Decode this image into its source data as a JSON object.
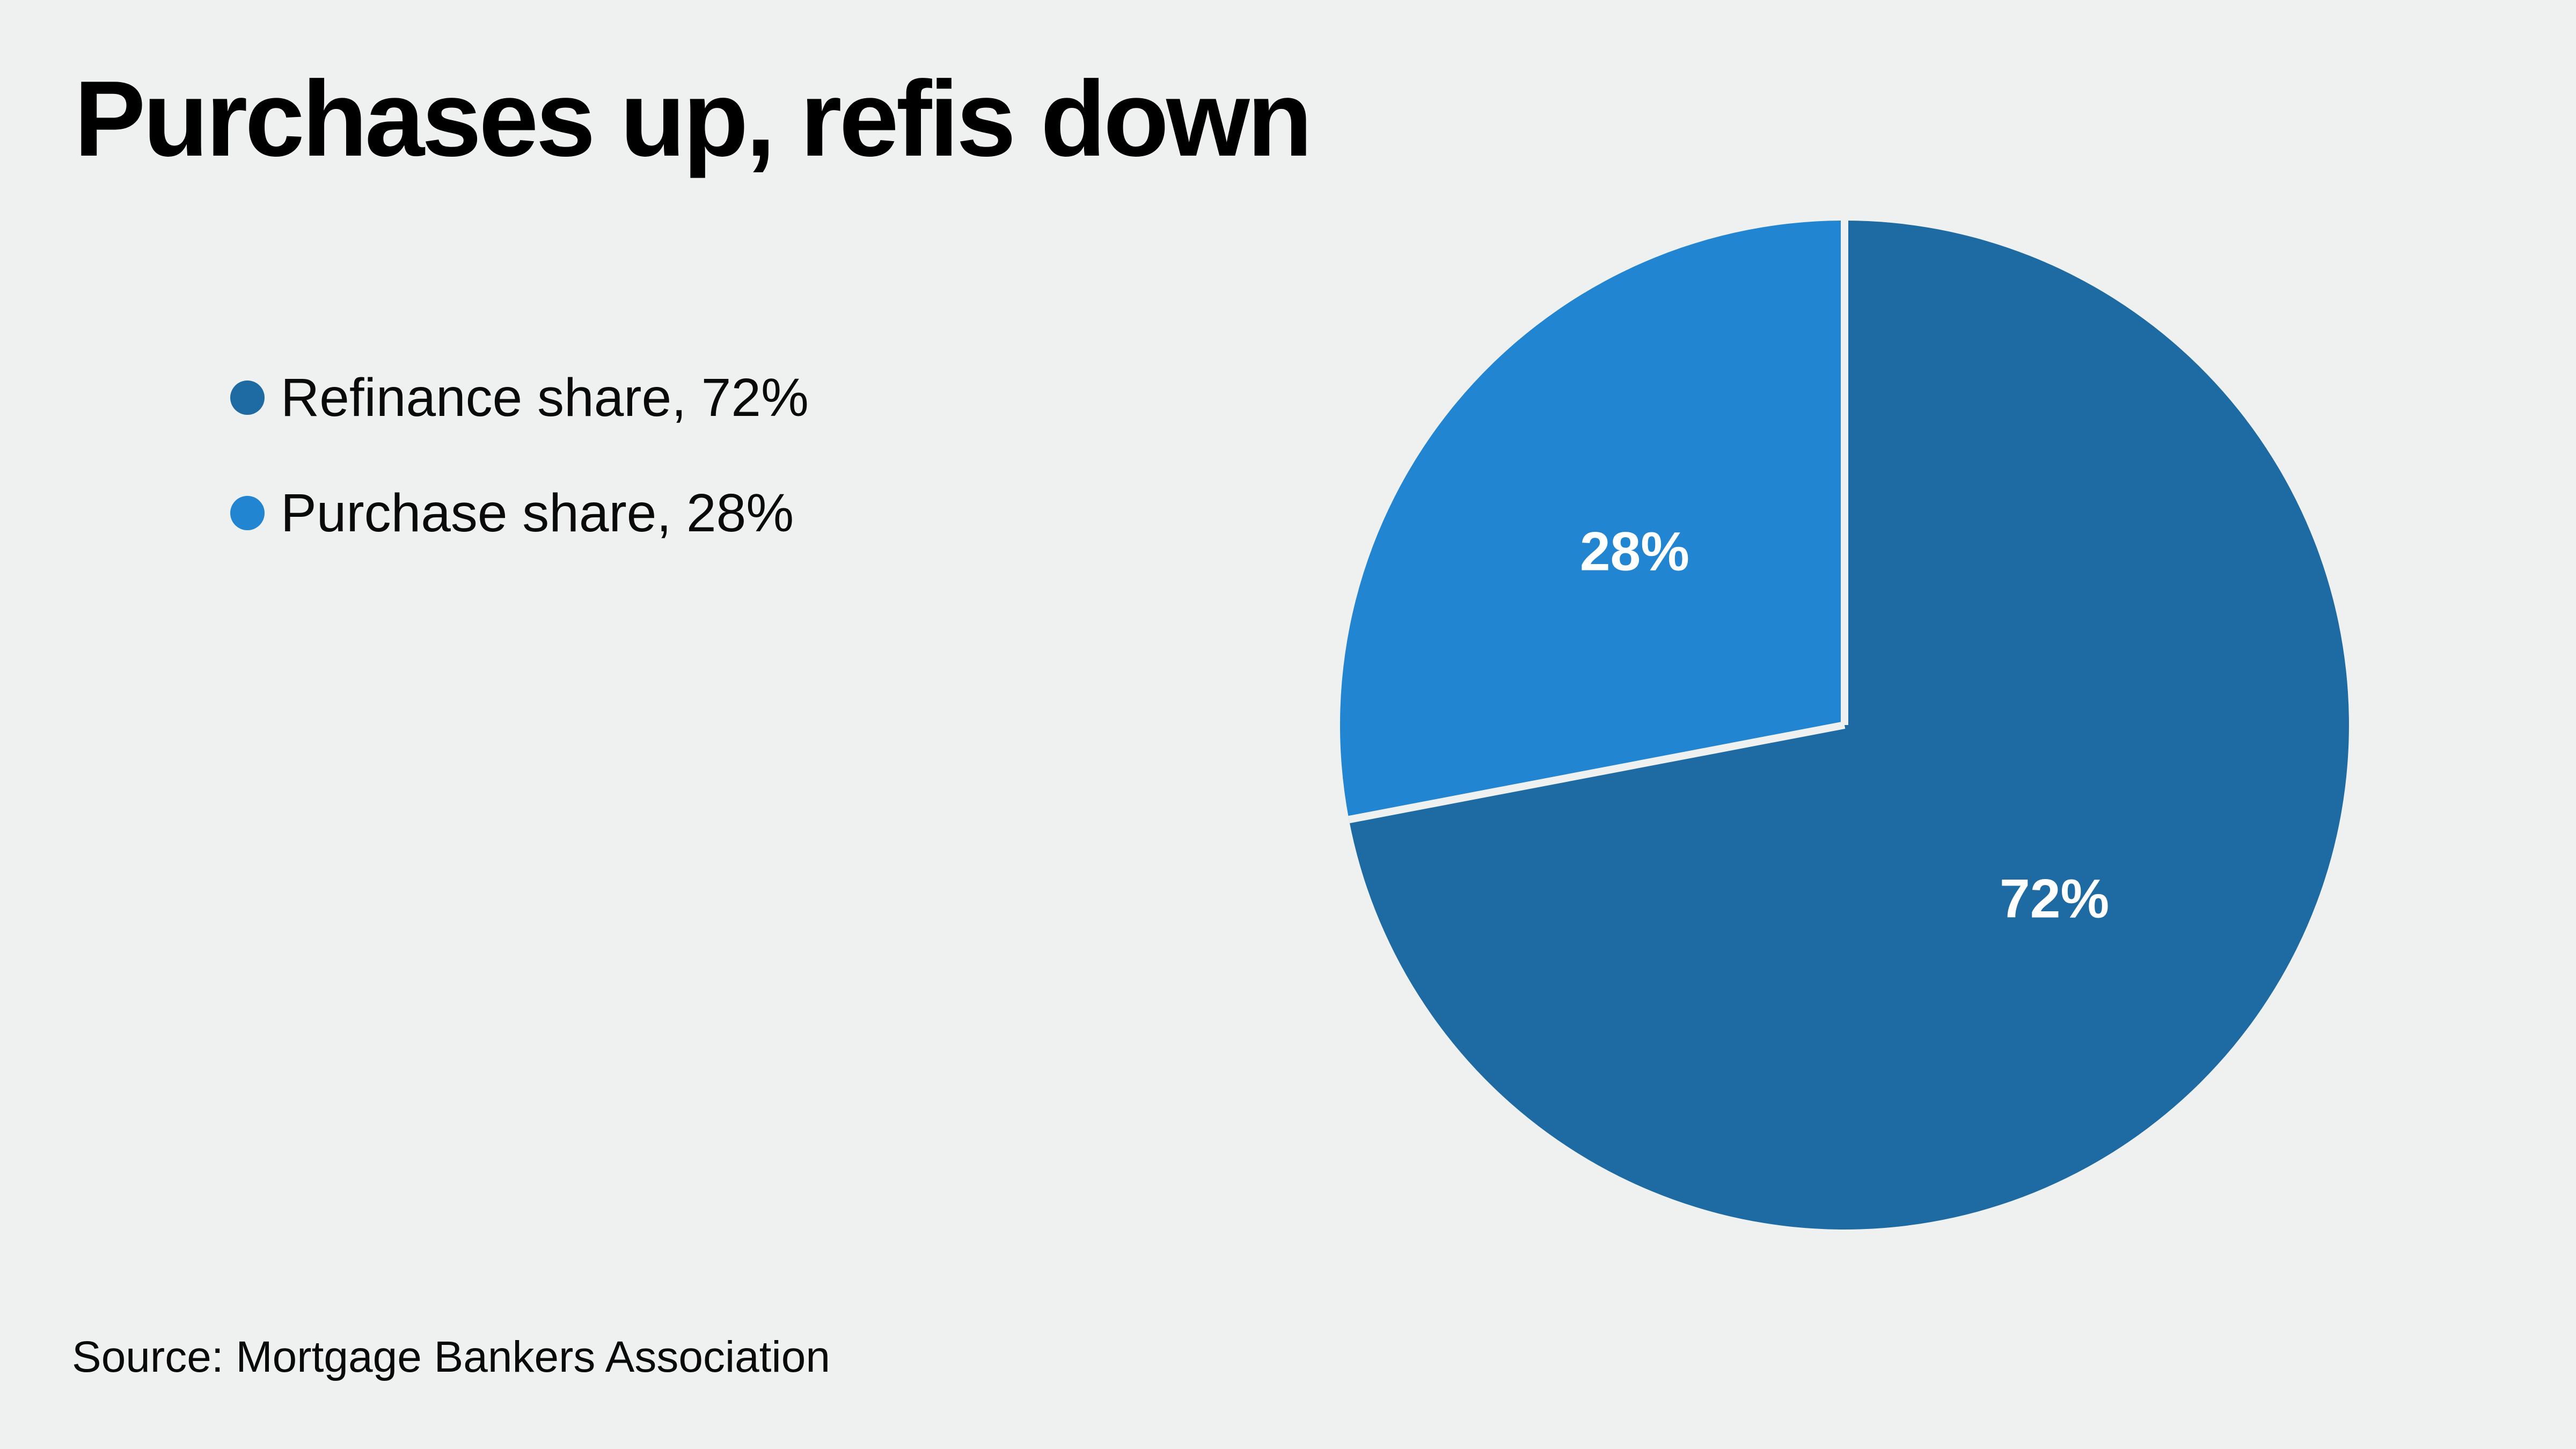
{
  "page": {
    "background": "#eff1f0"
  },
  "chart": {
    "title": "Purchases up, refis down",
    "source": "Source: Mortgage Bankers Association"
  },
  "legend": {
    "items": [
      {
        "label": "Refinance share, 72%",
        "color": "#1e6ba3"
      },
      {
        "label": "Purchase share, 28%",
        "color": "#2185d2"
      }
    ]
  },
  "chart_data": {
    "type": "pie",
    "title": "Purchases up, refis down",
    "source": "Source: Mortgage Bankers Association",
    "start_angle": "12-oclock",
    "direction": "clockwise",
    "legend_position": "upper-left",
    "data_label_color": "#ffffff",
    "divider_color": "#eff1f0",
    "slices": [
      {
        "name": "Refinance share",
        "value": 72,
        "percent_label": "72%",
        "color": "#1e6ba3"
      },
      {
        "name": "Purchase share",
        "value": 28,
        "percent_label": "28%",
        "color": "#2185d2"
      }
    ]
  }
}
